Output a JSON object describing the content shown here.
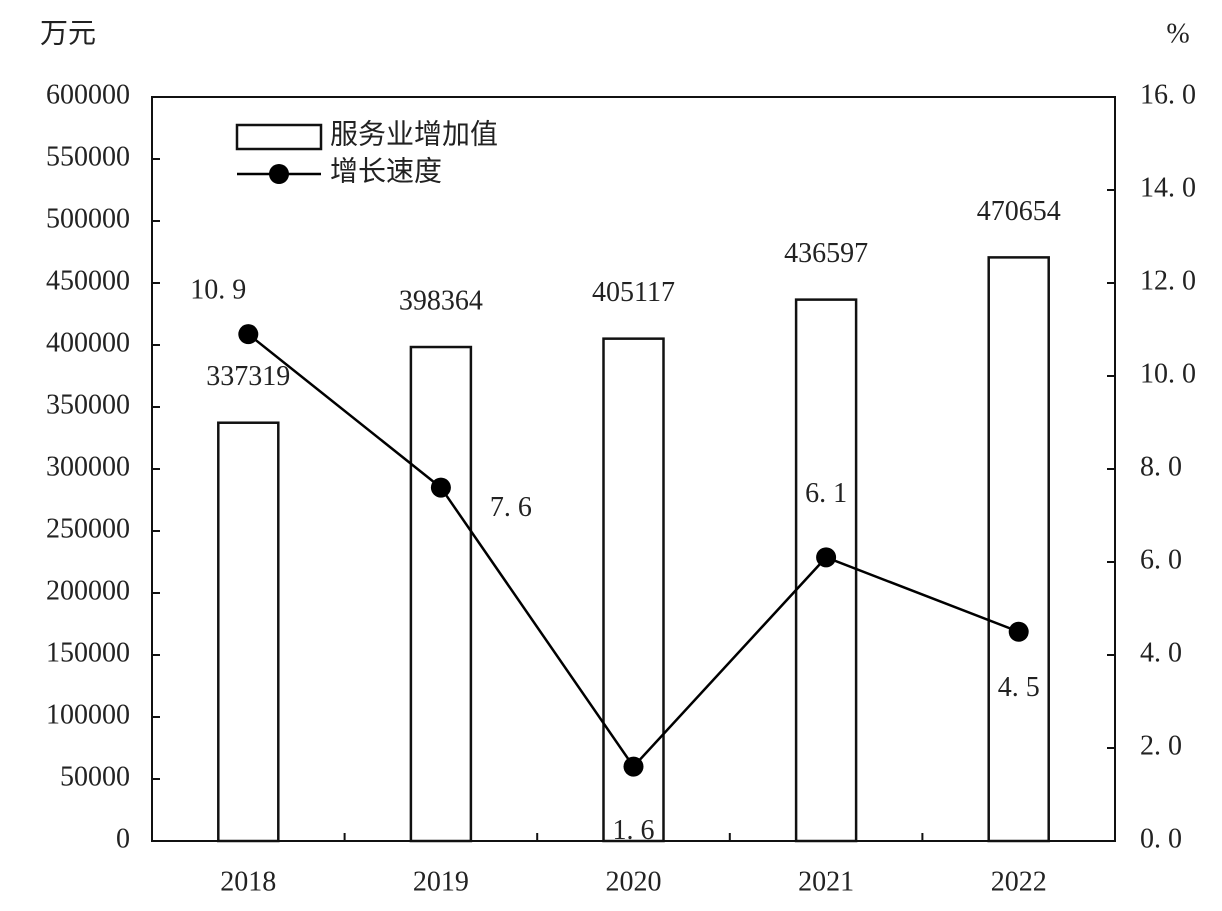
{
  "chart_data": {
    "type": "combo",
    "y_label": "万元",
    "y2_label": "%",
    "categories": [
      "2018",
      "2019",
      "2020",
      "2021",
      "2022"
    ],
    "series": [
      {
        "name": "服务业增加值",
        "type": "bar",
        "color": "#ffffff",
        "values": [
          337319,
          398364,
          405117,
          436597,
          470654
        ]
      },
      {
        "name": "增长速度",
        "type": "line",
        "axis": "y2",
        "color": "#000000",
        "values": [
          10.9,
          7.6,
          1.6,
          6.1,
          4.5
        ],
        "value_labels": [
          "10. 9",
          "7. 6",
          "1. 6",
          "6. 1",
          "4. 5"
        ]
      }
    ],
    "ylim": [
      0,
      600000
    ],
    "yticks": [
      0,
      50000,
      100000,
      150000,
      200000,
      250000,
      300000,
      350000,
      400000,
      450000,
      500000,
      550000,
      600000
    ],
    "y2lim": [
      0,
      16
    ],
    "y2ticks": [
      {
        "value": 0,
        "label": "0. 0"
      },
      {
        "value": 2,
        "label": "2. 0"
      },
      {
        "value": 4,
        "label": "4. 0"
      },
      {
        "value": 6,
        "label": "6. 0"
      },
      {
        "value": 8,
        "label": "8. 0"
      },
      {
        "value": 10,
        "label": "10. 0"
      },
      {
        "value": 12,
        "label": "12. 0"
      },
      {
        "value": 14,
        "label": "14. 0"
      },
      {
        "value": 16,
        "label": "16. 0"
      }
    ]
  }
}
